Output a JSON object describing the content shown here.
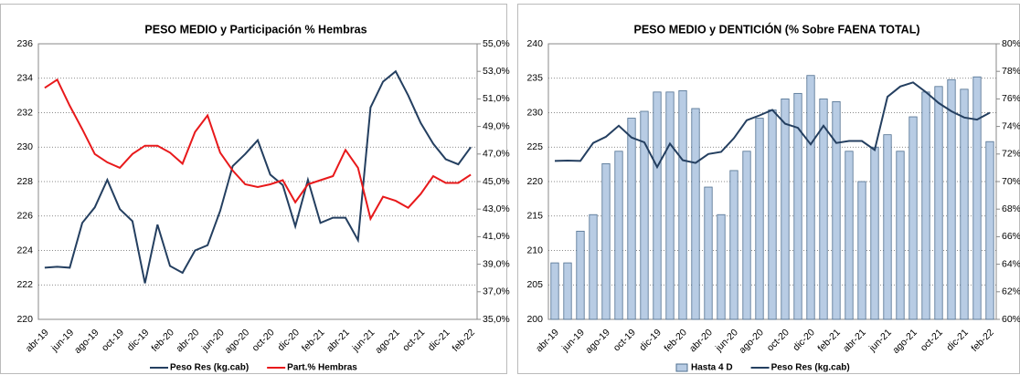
{
  "chart_data": [
    {
      "type": "line",
      "title": "PESO MEDIO y Participación % Hembras",
      "categories": [
        "abr-19",
        null,
        "jun-19",
        null,
        "ago-19",
        null,
        "oct-19",
        null,
        "dic-19",
        null,
        "feb-20",
        null,
        "abr-20",
        null,
        "jun-20",
        null,
        "ago-20",
        null,
        "oct-20",
        null,
        "dic-20",
        null,
        "feb-21",
        null,
        "abr-21",
        null,
        "jun-21",
        null,
        "ago-21",
        null,
        "oct-21",
        null,
        "dic-21",
        null,
        "feb-22"
      ],
      "series": [
        {
          "name": "Peso Res (kg.cab)",
          "color": "#243f60",
          "values": [
            223.0,
            223.05,
            223.0,
            225.6,
            226.5,
            228.1,
            226.4,
            225.7,
            222.1,
            225.5,
            223.1,
            222.7,
            224.0,
            224.3,
            226.3,
            228.9,
            229.6,
            230.4,
            228.4,
            227.8,
            225.4,
            228.1,
            225.6,
            225.9,
            225.9,
            224.6,
            232.3,
            233.8,
            234.4,
            233.0,
            231.4,
            230.2,
            229.3,
            229.0,
            230.0
          ]
        },
        {
          "name": "Part.% Hembras",
          "color": "#e8191b",
          "axis": "y2",
          "values": [
            51.8,
            52.4,
            50.5,
            48.8,
            47.0,
            46.4,
            46.0,
            47.0,
            47.6,
            47.6,
            47.1,
            46.3,
            48.6,
            49.8,
            47.1,
            45.8,
            44.8,
            44.6,
            44.8,
            45.1,
            43.5,
            44.8,
            45.1,
            45.4,
            47.3,
            46.0,
            42.3,
            43.9,
            43.6,
            43.1,
            44.1,
            45.4,
            44.9,
            44.9,
            45.5
          ]
        }
      ],
      "ylim": [
        220,
        236
      ],
      "yticks": [
        220,
        222,
        224,
        226,
        228,
        230,
        232,
        234,
        236
      ],
      "y2lim": [
        35,
        55
      ],
      "y2ticks": [
        {
          "value": 35,
          "label": "35,0%"
        },
        {
          "value": 37,
          "label": "37,0%"
        },
        {
          "value": 39,
          "label": "39,0%"
        },
        {
          "value": 41,
          "label": "41,0%"
        },
        {
          "value": 43,
          "label": "43,0%"
        },
        {
          "value": 45,
          "label": "45,0%"
        },
        {
          "value": 47,
          "label": "47,0%"
        },
        {
          "value": 49,
          "label": "49,0%"
        },
        {
          "value": 51,
          "label": "51,0%"
        },
        {
          "value": 53,
          "label": "53,0%"
        },
        {
          "value": 55,
          "label": "55,0%"
        }
      ],
      "grid": true
    },
    {
      "type": "combo",
      "title": "PESO MEDIO y DENTICIÓN (% Sobre FAENA TOTAL)",
      "categories": [
        "abr-19",
        null,
        "jun-19",
        null,
        "ago-19",
        null,
        "oct-19",
        null,
        "dic-19",
        null,
        "feb-20",
        null,
        "abr-20",
        null,
        "jun-20",
        null,
        "ago-20",
        null,
        "oct-20",
        null,
        "dic-20",
        null,
        "feb-21",
        null,
        "abr-21",
        null,
        "jun-21",
        null,
        "ago-21",
        null,
        "oct-21",
        null,
        "dic-21",
        null,
        "feb-22"
      ],
      "series": [
        {
          "name": "Hasta 4 D",
          "type": "bar",
          "color": "#b8cce4",
          "axis": "y2",
          "values": [
            64.1,
            64.1,
            66.4,
            67.6,
            71.3,
            72.2,
            74.6,
            75.1,
            76.5,
            76.5,
            76.6,
            75.3,
            69.6,
            67.6,
            70.8,
            72.2,
            74.6,
            75.2,
            76.0,
            76.4,
            77.7,
            76.0,
            75.8,
            72.2,
            70.0,
            72.5,
            73.4,
            72.2,
            74.7,
            76.5,
            76.9,
            77.4,
            76.7,
            77.6,
            72.9
          ]
        },
        {
          "name": "Peso Res (kg.cab)",
          "type": "line",
          "color": "#243f60",
          "values": [
            223.0,
            223.05,
            223.0,
            225.6,
            226.5,
            228.1,
            226.4,
            225.7,
            222.1,
            225.5,
            223.1,
            222.7,
            224.0,
            224.3,
            226.3,
            228.9,
            229.6,
            230.4,
            228.4,
            227.8,
            225.4,
            228.1,
            225.6,
            225.9,
            225.9,
            224.6,
            232.3,
            233.8,
            234.4,
            233.0,
            231.4,
            230.2,
            229.3,
            229.0,
            230.0
          ]
        }
      ],
      "ylim": [
        200,
        240
      ],
      "yticks": [
        200,
        205,
        210,
        215,
        220,
        225,
        230,
        235,
        240
      ],
      "y2lim": [
        60,
        80
      ],
      "y2ticks": [
        {
          "value": 60,
          "label": "60%"
        },
        {
          "value": 62,
          "label": "62%"
        },
        {
          "value": 64,
          "label": "64%"
        },
        {
          "value": 66,
          "label": "66%"
        },
        {
          "value": 68,
          "label": "68%"
        },
        {
          "value": 70,
          "label": "70%"
        },
        {
          "value": 72,
          "label": "72%"
        },
        {
          "value": 74,
          "label": "74%"
        },
        {
          "value": 76,
          "label": "76%"
        },
        {
          "value": 78,
          "label": "78%"
        },
        {
          "value": 80,
          "label": "80%"
        }
      ],
      "grid": true
    }
  ]
}
